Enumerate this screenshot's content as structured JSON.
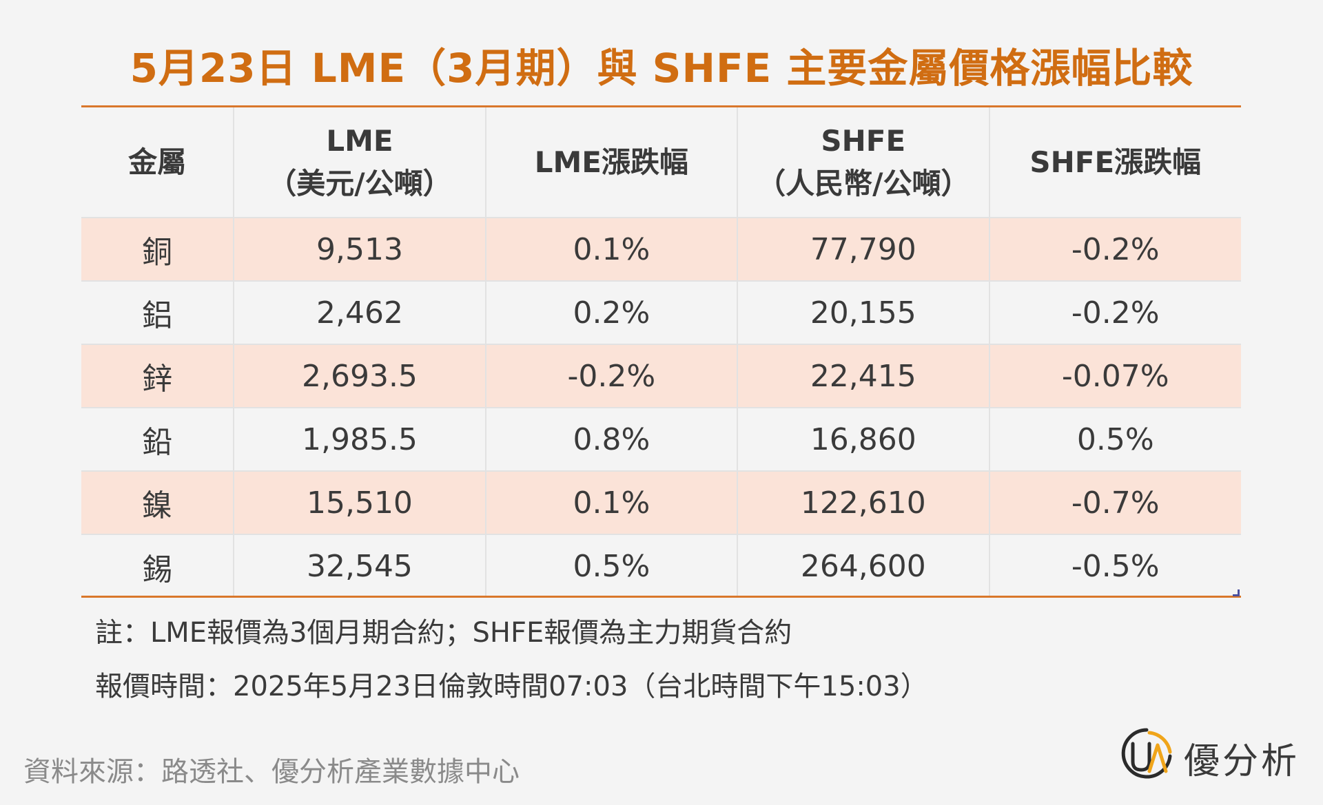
{
  "title": "5月23日 LME（3月期）與 SHFE 主要金屬價格漲幅比較",
  "chart_data": {
    "type": "table",
    "columns": [
      {
        "line1": "金屬",
        "line2": ""
      },
      {
        "line1": "LME",
        "line2": "（美元/公噸）"
      },
      {
        "line1": "LME漲跌幅",
        "line2": ""
      },
      {
        "line1": "SHFE",
        "line2": "（人民幣/公噸）"
      },
      {
        "line1": "SHFE漲跌幅",
        "line2": ""
      }
    ],
    "rows": [
      {
        "metal": "銅",
        "lme": "9,513",
        "lme_change": "0.1%",
        "shfe": "77,790",
        "shfe_change": "-0.2%"
      },
      {
        "metal": "鋁",
        "lme": "2,462",
        "lme_change": "0.2%",
        "shfe": "20,155",
        "shfe_change": "-0.2%"
      },
      {
        "metal": "鋅",
        "lme": "2,693.5",
        "lme_change": "-0.2%",
        "shfe": "22,415",
        "shfe_change": "-0.07%"
      },
      {
        "metal": "鉛",
        "lme": "1,985.5",
        "lme_change": "0.8%",
        "shfe": "16,860",
        "shfe_change": "0.5%"
      },
      {
        "metal": "鎳",
        "lme": "15,510",
        "lme_change": "0.1%",
        "shfe": "122,610",
        "shfe_change": "-0.7%"
      },
      {
        "metal": "錫",
        "lme": "32,545",
        "lme_change": "0.5%",
        "shfe": "264,600",
        "shfe_change": "-0.5%"
      }
    ]
  },
  "notes": {
    "note1": "註：LME報價為3個月期合約；SHFE報價為主力期貨合約",
    "note2": "報價時間：2025年5月23日倫敦時間07:03（台北時間下午15:03）"
  },
  "source": "資料來源：路透社、優分析產業數據中心",
  "logo": {
    "text": "優分析",
    "icon": "ua-logo-icon"
  },
  "colors": {
    "title": "#d06d12",
    "rule": "#d9772b",
    "highlight_row": "#fbe3d8",
    "background": "#f4f4f4"
  }
}
